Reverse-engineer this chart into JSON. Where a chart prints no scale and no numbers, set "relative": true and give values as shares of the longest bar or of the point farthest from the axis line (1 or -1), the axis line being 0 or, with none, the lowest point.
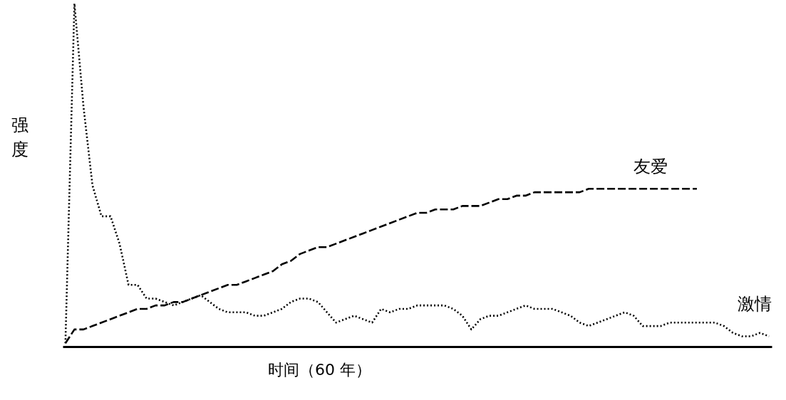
{
  "chart_data": {
    "type": "line",
    "relative": true,
    "xlabel": "时间（60 年）",
    "ylabel": "强度",
    "legend": false,
    "categories": [
      null,
      null,
      null,
      null,
      null,
      null,
      null,
      null,
      null,
      null,
      null,
      null,
      null,
      null,
      null,
      null,
      null,
      null,
      null,
      null,
      null,
      null,
      null,
      null,
      null,
      null,
      null,
      null,
      null,
      null,
      null,
      null,
      null,
      null,
      null,
      null,
      null,
      null,
      null,
      null,
      null,
      null,
      null,
      null,
      null,
      null,
      null,
      null,
      null,
      null,
      null,
      null,
      null,
      null,
      null,
      null,
      null,
      null,
      null,
      null,
      null,
      null,
      null,
      null,
      null,
      null,
      null,
      null,
      null,
      null,
      null,
      null,
      null,
      null,
      null,
      null,
      null,
      null,
      null
    ],
    "series": [
      {
        "name": "友爱",
        "color": "#000000",
        "line_style": "dashed",
        "values": [
          0.01,
          0.05,
          0.05,
          0.06,
          0.07,
          0.08,
          0.09,
          0.1,
          0.11,
          0.11,
          0.12,
          0.12,
          0.13,
          0.13,
          0.14,
          0.15,
          0.16,
          0.17,
          0.18,
          0.18,
          0.19,
          0.2,
          0.21,
          0.22,
          0.24,
          0.25,
          0.27,
          0.28,
          0.29,
          0.29,
          0.3,
          0.31,
          0.32,
          0.33,
          0.34,
          0.35,
          0.36,
          0.37,
          0.38,
          0.39,
          0.39,
          0.4,
          0.4,
          0.4,
          0.41,
          0.41,
          0.41,
          0.42,
          0.43,
          0.43,
          0.44,
          0.44,
          0.45,
          0.45,
          0.45,
          0.45,
          0.45,
          0.45,
          0.46,
          0.46,
          0.46,
          0.46,
          0.46,
          0.46,
          0.46,
          0.46,
          0.46,
          0.46,
          0.46,
          0.46,
          0.46,
          null,
          null,
          null,
          null,
          null,
          null,
          null,
          null
        ]
      },
      {
        "name": "激情",
        "color": "#000000",
        "line_style": "dotted",
        "values": [
          0.01,
          1,
          0.7,
          0.47,
          0.38,
          0.38,
          0.3,
          0.18,
          0.18,
          0.14,
          0.14,
          0.13,
          0.12,
          0.13,
          0.14,
          0.15,
          0.13,
          0.11,
          0.1,
          0.1,
          0.1,
          0.09,
          0.09,
          0.1,
          0.11,
          0.13,
          0.14,
          0.14,
          0.13,
          0.1,
          0.07,
          0.08,
          0.09,
          0.08,
          0.07,
          0.11,
          0.1,
          0.11,
          0.11,
          0.12,
          0.12,
          0.12,
          0.12,
          0.11,
          0.09,
          0.05,
          0.08,
          0.09,
          0.09,
          0.1,
          0.11,
          0.12,
          0.11,
          0.11,
          0.11,
          0.1,
          0.09,
          0.07,
          0.06,
          0.07,
          0.08,
          0.09,
          0.1,
          0.09,
          0.06,
          0.06,
          0.06,
          0.07,
          0.07,
          0.07,
          0.07,
          0.07,
          0.07,
          0.06,
          0.04,
          0.03,
          0.03,
          0.04,
          0.03
        ]
      }
    ]
  }
}
